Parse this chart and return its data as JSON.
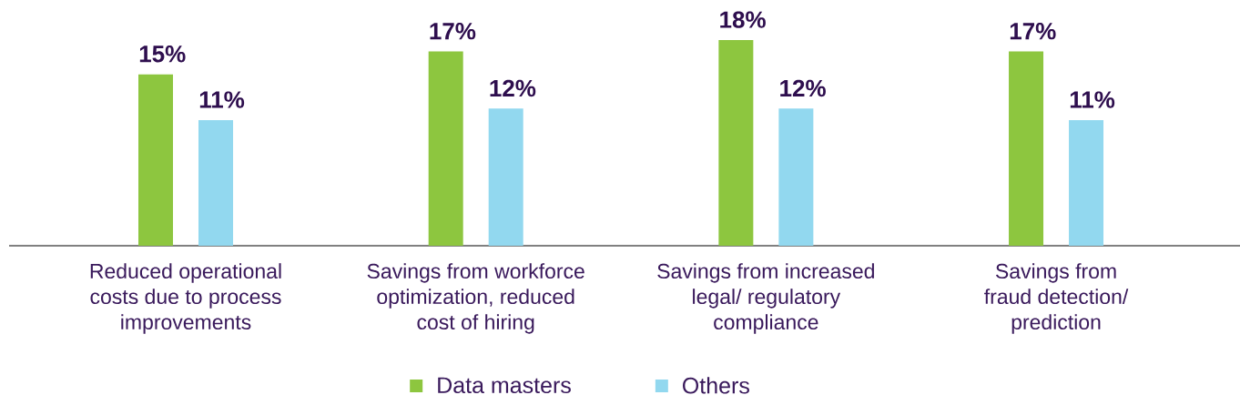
{
  "chart_data": {
    "type": "bar",
    "categories": [
      "Reduced operational costs due to process improvements",
      "Savings from workforce optimization, reduced cost of hiring",
      "Savings from increased legal/ regulatory compliance",
      "Savings from fraud detection/ prediction"
    ],
    "series": [
      {
        "name": "Data masters",
        "color": "#8dc63f",
        "values": [
          15,
          17,
          18,
          17
        ],
        "value_labels": [
          "15%",
          "17%",
          "18%",
          "17%"
        ]
      },
      {
        "name": "Others",
        "color": "#92d8ef",
        "values": [
          11,
          12,
          12,
          11
        ],
        "value_labels": [
          "11%",
          "12%",
          "12%",
          "11%"
        ]
      }
    ],
    "legend": "bottom"
  }
}
